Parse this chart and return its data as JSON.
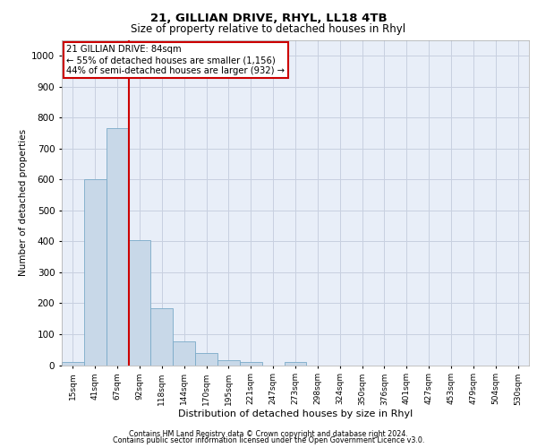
{
  "title1": "21, GILLIAN DRIVE, RHYL, LL18 4TB",
  "title2": "Size of property relative to detached houses in Rhyl",
  "xlabel": "Distribution of detached houses by size in Rhyl",
  "ylabel": "Number of detached properties",
  "categories": [
    "15sqm",
    "41sqm",
    "67sqm",
    "92sqm",
    "118sqm",
    "144sqm",
    "170sqm",
    "195sqm",
    "221sqm",
    "247sqm",
    "273sqm",
    "298sqm",
    "324sqm",
    "350sqm",
    "376sqm",
    "401sqm",
    "427sqm",
    "453sqm",
    "479sqm",
    "504sqm",
    "530sqm"
  ],
  "values": [
    10,
    600,
    765,
    405,
    185,
    78,
    38,
    15,
    10,
    0,
    10,
    0,
    0,
    0,
    0,
    0,
    0,
    0,
    0,
    0,
    0
  ],
  "bar_color": "#c8d8e8",
  "bar_edge_color": "#7aaac8",
  "vline_x": 2.5,
  "vline_color": "#cc0000",
  "annotation_text": "21 GILLIAN DRIVE: 84sqm\n← 55% of detached houses are smaller (1,156)\n44% of semi-detached houses are larger (932) →",
  "annotation_box_color": "#ffffff",
  "annotation_box_edge": "#cc0000",
  "ylim": [
    0,
    1050
  ],
  "yticks": [
    0,
    100,
    200,
    300,
    400,
    500,
    600,
    700,
    800,
    900,
    1000
  ],
  "grid_color": "#c8d0e0",
  "bg_color": "#e8eef8",
  "footer1": "Contains HM Land Registry data © Crown copyright and database right 2024.",
  "footer2": "Contains public sector information licensed under the Open Government Licence v3.0."
}
